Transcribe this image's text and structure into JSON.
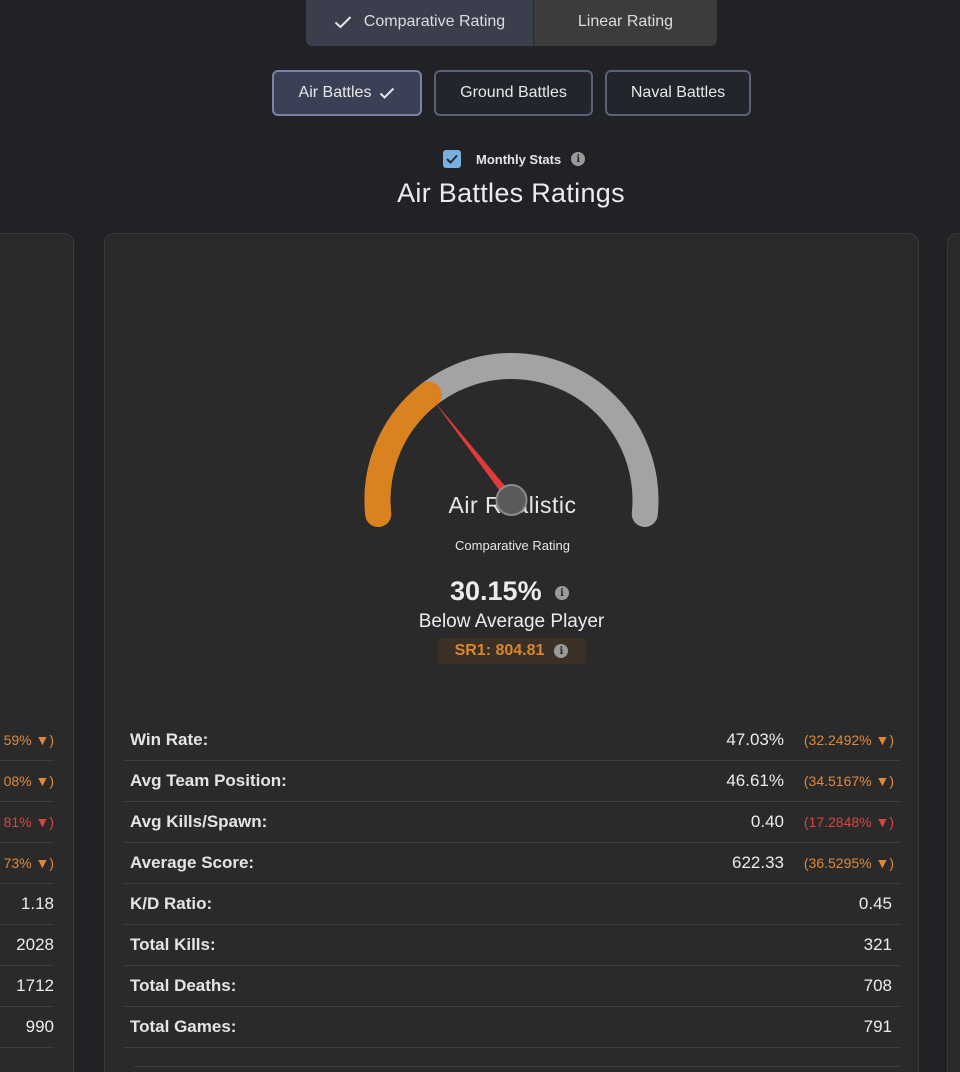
{
  "rating_toggle": {
    "comparative_label": "Comparative Rating",
    "linear_label": "Linear Rating"
  },
  "modes": {
    "air": "Air Battles",
    "ground": "Ground Battles",
    "naval": "Naval Battles"
  },
  "monthly": {
    "label": "Monthly Stats",
    "checked": true
  },
  "section_title": "Air Battles Ratings",
  "main_card": {
    "title": "Air Realistic",
    "subtitle": "Comparative Rating",
    "gauge_fraction": 0.3015,
    "percent": "30.15%",
    "status": "Below Average Player",
    "sr": "SR1: 804.81",
    "stats": [
      {
        "label": "Win Rate:",
        "value": "47.03%",
        "delta": "(32.2492% ▼)",
        "delta_color": "orange"
      },
      {
        "label": "Avg Team Position:",
        "value": "46.61%",
        "delta": "(34.5167% ▼)",
        "delta_color": "orange"
      },
      {
        "label": "Avg Kills/Spawn:",
        "value": "0.40",
        "delta": "(17.2848% ▼)",
        "delta_color": "red"
      },
      {
        "label": "Average Score:",
        "value": "622.33",
        "delta": "(36.5295% ▼)",
        "delta_color": "orange"
      },
      {
        "label": "K/D Ratio:",
        "value": "0.45",
        "delta": "",
        "delta_color": ""
      },
      {
        "label": "Total Kills:",
        "value": "321",
        "delta": "",
        "delta_color": ""
      },
      {
        "label": "Total Deaths:",
        "value": "708",
        "delta": "",
        "delta_color": ""
      },
      {
        "label": "Total Games:",
        "value": "791",
        "delta": "",
        "delta_color": ""
      }
    ]
  },
  "left_card_visible": [
    {
      "text": "59% ▼)",
      "color": "orange"
    },
    {
      "text": "08% ▼)",
      "color": "orange"
    },
    {
      "text": "81% ▼)",
      "color": "red"
    },
    {
      "text": "73% ▼)",
      "color": "orange"
    },
    {
      "text": "1.18",
      "color": ""
    },
    {
      "text": "2028",
      "color": ""
    },
    {
      "text": "1712",
      "color": ""
    },
    {
      "text": "990",
      "color": ""
    }
  ],
  "colors": {
    "gauge_fill": "#d9821f",
    "gauge_track": "#a3a3a3",
    "needle": "#e03a3a",
    "accent_orange": "#e0883a",
    "accent_red": "#d94545"
  }
}
